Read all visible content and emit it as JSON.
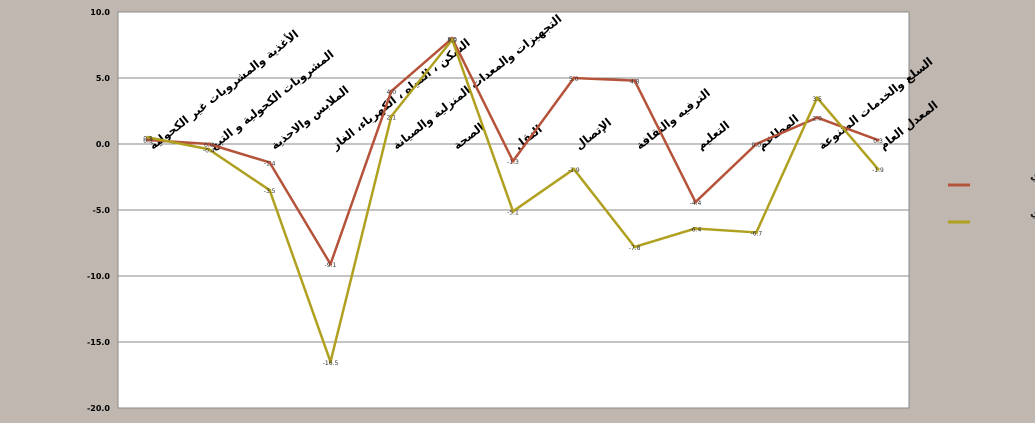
{
  "chart_data": {
    "type": "line",
    "categories": [
      "الأغذية والمشروبات غير الكحولية",
      "المشروبات الكحولية و التبغ",
      "الملابس والاحذية",
      "السكن ، المياه ، الكهرباء، الغاز",
      "التجهيزات والمعدات المنزلية والصيانة",
      "الصحة",
      "النقل",
      "الإتصال",
      "الترفيه والثقافة",
      "التعليم",
      "المطاعم",
      "السلع والخدمات المتنوعة",
      "المعدل العام"
    ],
    "series": [
      {
        "name": "التضخم الشهري",
        "color": "#b5533a",
        "values": [
          0.3,
          0.0,
          -1.4,
          -9.1,
          4.0,
          8.0,
          -1.3,
          5.0,
          4.8,
          -4.4,
          0.0,
          2.0,
          0.3
        ],
        "labels": [
          "0.3",
          "0.0",
          "-1.4",
          "-9.1",
          "4.0",
          "8.0",
          "-1.3",
          "5.0",
          "4.8",
          "-4.4",
          "0.0",
          "2.0",
          "0.3"
        ]
      },
      {
        "name": "التضخم السنوي",
        "color": "#b0a020",
        "values": [
          0.5,
          -0.4,
          -3.5,
          -16.5,
          2.1,
          7.9,
          -5.1,
          -1.9,
          -7.8,
          -6.4,
          -6.7,
          3.5,
          -1.9
        ],
        "labels": [
          "0.5",
          "-0.4",
          "-3.5",
          "-16.5",
          "2.1",
          "7.9",
          "-5.1",
          "-1.9",
          "-7.8",
          "-6.4",
          "-6.7",
          "3.5",
          "-1.9"
        ]
      }
    ],
    "y_ticks": [
      "10.0",
      "5.0",
      "0.0",
      "-5.0",
      "-10.0",
      "-15.0",
      "-20.0"
    ],
    "ylim": [
      -20,
      10
    ],
    "grid": true,
    "legend_position": "right",
    "plot_background": "#ffffff",
    "page_background": "#c0b8b0",
    "grid_color": "#8a8a8a"
  }
}
